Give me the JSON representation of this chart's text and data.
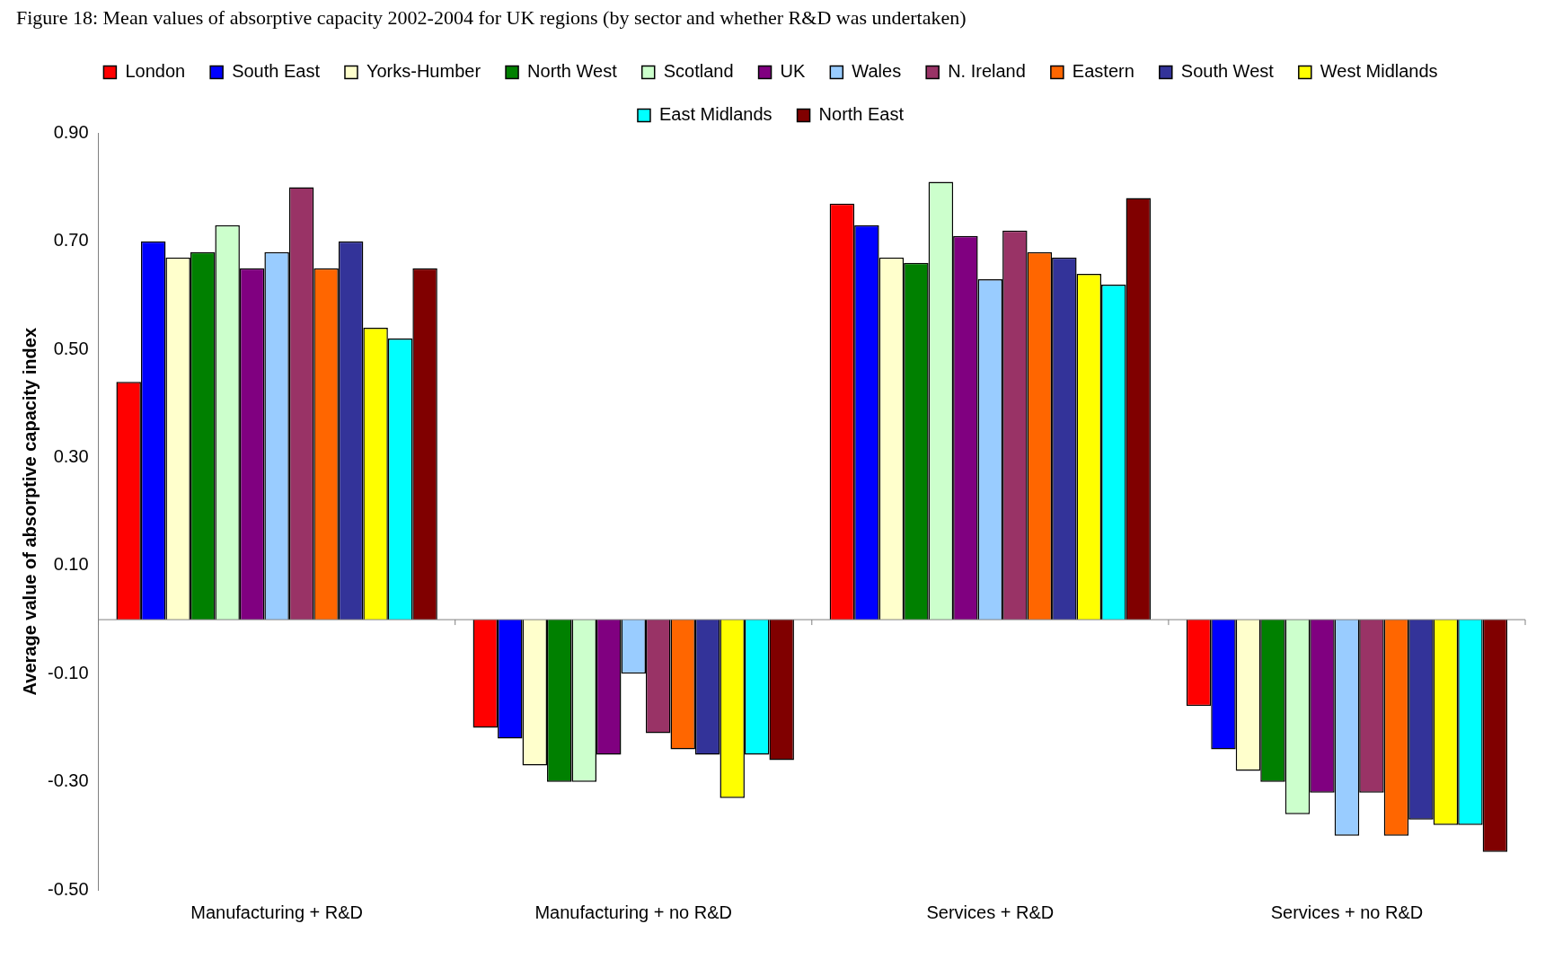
{
  "chart_data": {
    "type": "bar",
    "title": "Figure 18: Mean values of absorptive capacity 2002-2004 for UK regions (by sector and whether R&D was undertaken)",
    "ylabel": "Average value of absorptive capacity index",
    "categories": [
      "Manufacturing + R&D",
      "Manufacturing + no R&D",
      "Services + R&D",
      "Services + no R&D"
    ],
    "series": [
      {
        "name": "London",
        "color": "#ff0000",
        "values": [
          0.44,
          -0.2,
          0.77,
          -0.16
        ]
      },
      {
        "name": "South East",
        "color": "#0000ff",
        "values": [
          0.7,
          -0.22,
          0.73,
          -0.24
        ]
      },
      {
        "name": "Yorks-Humber",
        "color": "#ffffcc",
        "values": [
          0.67,
          -0.27,
          0.67,
          -0.28
        ]
      },
      {
        "name": "North West",
        "color": "#008000",
        "values": [
          0.68,
          -0.3,
          0.66,
          -0.3
        ]
      },
      {
        "name": "Scotland",
        "color": "#ccffcc",
        "values": [
          0.73,
          -0.3,
          0.81,
          -0.36
        ]
      },
      {
        "name": "UK",
        "color": "#800080",
        "values": [
          0.65,
          -0.25,
          0.71,
          -0.32
        ]
      },
      {
        "name": "Wales",
        "color": "#99ccff",
        "values": [
          0.68,
          -0.1,
          0.63,
          -0.4
        ]
      },
      {
        "name": "N. Ireland",
        "color": "#993366",
        "values": [
          0.8,
          -0.21,
          0.72,
          -0.32
        ]
      },
      {
        "name": "Eastern",
        "color": "#ff6600",
        "values": [
          0.65,
          -0.24,
          0.68,
          -0.4
        ]
      },
      {
        "name": "South West",
        "color": "#333399",
        "values": [
          0.7,
          -0.25,
          0.67,
          -0.37
        ]
      },
      {
        "name": "West Midlands",
        "color": "#ffff00",
        "values": [
          0.54,
          -0.33,
          0.64,
          -0.38
        ]
      },
      {
        "name": "East Midlands",
        "color": "#00ffff",
        "values": [
          0.52,
          -0.25,
          0.62,
          -0.38
        ]
      },
      {
        "name": "North East",
        "color": "#800000",
        "values": [
          0.65,
          -0.26,
          0.78,
          -0.43
        ]
      }
    ],
    "ylim": [
      -0.5,
      0.9
    ],
    "yticks": [
      {
        "value": -0.5,
        "label": "-0.50"
      },
      {
        "value": -0.3,
        "label": "-0.30"
      },
      {
        "value": -0.1,
        "label": "-0.10"
      },
      {
        "value": 0.1,
        "label": "0.10"
      },
      {
        "value": 0.3,
        "label": "0.30"
      },
      {
        "value": 0.5,
        "label": "0.50"
      },
      {
        "value": 0.7,
        "label": "0.70"
      },
      {
        "value": 0.9,
        "label": "0.90"
      }
    ],
    "grid": false,
    "legend": "top"
  }
}
